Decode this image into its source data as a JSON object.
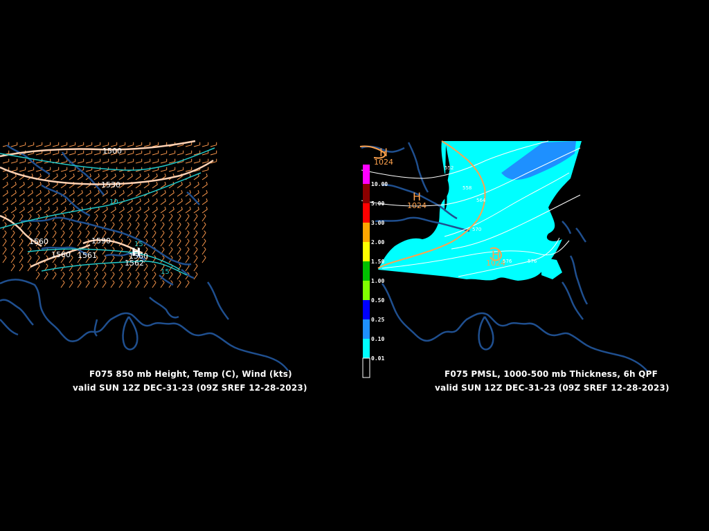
{
  "left_panel": {
    "caption_line1": "F075 850 mb Height, Temp (C), Wind (kts)",
    "caption_line2": "valid SUN 12Z DEC-31-23 (09Z SREF 12-28-2023)",
    "height_labels": [
      "1500",
      "1530",
      "1560",
      "1560",
      "1561",
      "1590",
      "1560",
      "1562"
    ],
    "temp_labels": [
      "10",
      "15",
      "15"
    ],
    "high_marker": "H"
  },
  "right_panel": {
    "caption_line1": "F075 PMSL, 1000-500 mb Thickness, 6h QPF",
    "caption_line2": "valid SUN 12Z DEC-31-23 (09Z SREF 12-28-2023)",
    "pressure_labels": [
      "1024",
      "1024",
      "1024"
    ],
    "thickness_labels": [
      "552",
      "558",
      "564",
      "570",
      "576",
      "576"
    ],
    "high_markers": [
      "H",
      "H",
      "H"
    ],
    "colorbar": [
      {
        "value": "10.00",
        "color": "#ff00ff"
      },
      {
        "value": "5.00",
        "color": "#8b0000"
      },
      {
        "value": "3.00",
        "color": "#ff0000"
      },
      {
        "value": "2.00",
        "color": "#ffa500"
      },
      {
        "value": "1.50",
        "color": "#ffff00"
      },
      {
        "value": "1.00",
        "color": "#00c000"
      },
      {
        "value": "0.50",
        "color": "#80ff00"
      },
      {
        "value": "0.25",
        "color": "#0000ff"
      },
      {
        "value": "0.10",
        "color": "#1e90ff"
      },
      {
        "value": "0.01",
        "color": "#00ffff"
      }
    ]
  },
  "colors": {
    "background": "#000000",
    "coastline": "#1f4f8f",
    "height_contour": "#ffd2b4",
    "wind_barb": "#ff9a4d",
    "isotherm": "#21c7c7",
    "isobar": "#ffa24d",
    "thickness": "#ffffff",
    "qpf_light": "#00ffff",
    "qpf_medium": "#1e90ff"
  }
}
